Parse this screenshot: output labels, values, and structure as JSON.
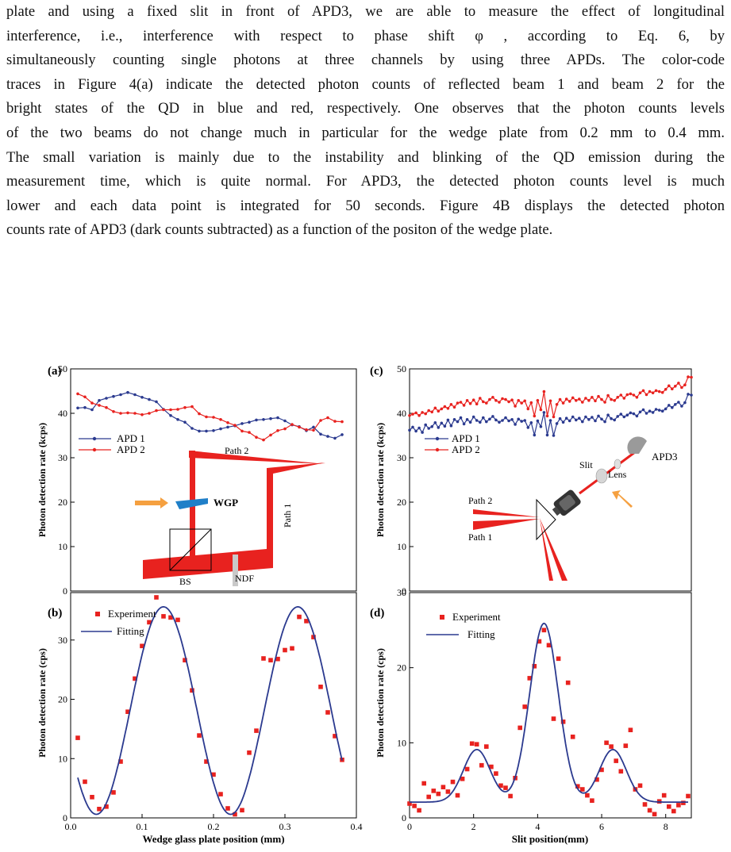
{
  "paragraph": {
    "lines": [
      "plate and using a fixed slit in front of APD3, we are able to measure the effect of longitudinal",
      "interference, i.e., interference with respect to phase shift φ , according to Eq. 6, by",
      "simultaneously counting single photons at three channels by using three APDs. The color-code",
      "traces in Figure 4(a) indicate the detected photon counts of reflected beam 1 and beam 2 for the",
      "bright states of the QD in blue and red, respectively. One observes that the photon counts levels",
      "of the two beams do not change much in particular for the wedge plate from 0.2 mm to 0.4 mm.",
      "The small variation is mainly due to the instability and blinking of the QD emission during the",
      "measurement time, which is quite normal. For APD3, the detected photon counts level is much",
      "lower and each data point is integrated for 50 seconds. Figure 4B displays the detected photon",
      "counts rate of APD3 (dark counts subtracted) as a function of the positon of the wedge plate."
    ]
  },
  "colors": {
    "blue": "#2b3a8f",
    "red": "#e8221f",
    "orange": "#f5a040",
    "teal": "#1f7fc8",
    "gray": "#c9c9c9"
  },
  "chart_data": [
    {
      "type": "line",
      "panel": "(a)",
      "ylabel": "Photon detection rate (kcps)",
      "ylim": [
        0,
        50
      ],
      "yticks": [
        "0",
        "10",
        "20",
        "30",
        "40",
        "50"
      ],
      "xlim": [
        0,
        0.4
      ],
      "series": [
        {
          "name": "APD 1",
          "color": "#2b3a8f",
          "x": [
            0.01,
            0.02,
            0.03,
            0.04,
            0.05,
            0.06,
            0.07,
            0.08,
            0.09,
            0.1,
            0.11,
            0.12,
            0.13,
            0.14,
            0.15,
            0.16,
            0.17,
            0.18,
            0.19,
            0.2,
            0.21,
            0.22,
            0.23,
            0.24,
            0.25,
            0.26,
            0.27,
            0.28,
            0.29,
            0.3,
            0.31,
            0.32,
            0.33,
            0.34,
            0.35,
            0.36,
            0.37,
            0.38
          ],
          "y": [
            41.2,
            41.3,
            40.8,
            42.9,
            43.4,
            43.8,
            44.2,
            44.7,
            44.2,
            43.6,
            43.1,
            42.6,
            40.9,
            39.5,
            38.6,
            38.0,
            36.6,
            36.0,
            36.0,
            36.1,
            36.5,
            36.9,
            37.2,
            37.7,
            38.0,
            38.5,
            38.6,
            38.8,
            39.0,
            38.3,
            37.4,
            37.0,
            36.1,
            36.9,
            35.3,
            34.8,
            34.4,
            35.2
          ]
        },
        {
          "name": "APD 2",
          "color": "#e8221f",
          "x": [
            0.01,
            0.02,
            0.03,
            0.04,
            0.05,
            0.06,
            0.07,
            0.08,
            0.09,
            0.1,
            0.11,
            0.12,
            0.13,
            0.14,
            0.15,
            0.16,
            0.17,
            0.18,
            0.19,
            0.2,
            0.21,
            0.22,
            0.23,
            0.24,
            0.25,
            0.26,
            0.27,
            0.28,
            0.29,
            0.3,
            0.31,
            0.32,
            0.33,
            0.34,
            0.35,
            0.36,
            0.37,
            0.38
          ],
          "y": [
            44.4,
            43.7,
            42.3,
            41.8,
            41.3,
            40.4,
            40.0,
            40.1,
            40.0,
            39.7,
            40.0,
            40.6,
            40.8,
            40.8,
            40.9,
            41.3,
            41.5,
            39.9,
            39.2,
            39.1,
            38.6,
            37.9,
            37.3,
            36.0,
            35.7,
            34.6,
            34.0,
            35.1,
            36.1,
            36.5,
            37.5,
            36.9,
            36.3,
            36.2,
            38.4,
            39.0,
            38.2,
            38.1
          ]
        }
      ],
      "legend": "center-left",
      "inset_labels": [
        "Path 2",
        "Path 1",
        "WGP",
        "BS",
        "NDF"
      ]
    },
    {
      "type": "scatter",
      "panel": "(b)",
      "xlabel": "Wedge glass plate position (mm)",
      "ylabel": "Photon detection rate (cps)",
      "xlim": [
        0,
        0.4
      ],
      "ylim": [
        0,
        38
      ],
      "xticks": [
        "0.0",
        "0.1",
        "0.2",
        "0.3",
        "0.4"
      ],
      "yticks": [
        "0",
        "10",
        "20",
        "30"
      ],
      "series": [
        {
          "name": "Experiment",
          "color": "#e8221f",
          "x": [
            0.01,
            0.02,
            0.03,
            0.04,
            0.05,
            0.06,
            0.07,
            0.08,
            0.09,
            0.1,
            0.11,
            0.12,
            0.13,
            0.14,
            0.15,
            0.16,
            0.17,
            0.18,
            0.19,
            0.2,
            0.21,
            0.22,
            0.23,
            0.24,
            0.25,
            0.26,
            0.27,
            0.28,
            0.29,
            0.3,
            0.31,
            0.32,
            0.33,
            0.34,
            0.35,
            0.36,
            0.37,
            0.38
          ],
          "y": [
            13.5,
            6.1,
            3.5,
            1.5,
            1.9,
            4.3,
            9.5,
            17.9,
            23.5,
            29.0,
            33.0,
            37.2,
            34.0,
            33.8,
            33.4,
            26.6,
            21.5,
            13.9,
            9.5,
            7.3,
            4.0,
            1.6,
            0.6,
            1.3,
            11.0,
            14.7,
            26.9,
            26.6,
            26.8,
            28.3,
            28.6,
            33.9,
            33.2,
            30.5,
            22.1,
            17.8,
            13.8,
            9.8
          ]
        },
        {
          "name": "Fitting",
          "color": "#2b3a8f",
          "fit": {
            "offset": 18.1,
            "amplitude": 17.5,
            "period": 0.188,
            "phase_x": 0.13
          }
        }
      ],
      "legend": "top-left"
    },
    {
      "type": "line",
      "panel": "(c)",
      "ylabel": "Photon detection rate (kcps)",
      "ylim": [
        0,
        50
      ],
      "yticks": [
        "0",
        "10",
        "20",
        "30",
        "40",
        "50"
      ],
      "xlim": [
        0,
        8.8
      ],
      "series": [
        {
          "name": "APD 1",
          "color": "#2b3a8f",
          "x": [
            0,
            0.1,
            0.2,
            0.3,
            0.4,
            0.5,
            0.6,
            0.7,
            0.8,
            0.9,
            1.0,
            1.1,
            1.2,
            1.3,
            1.4,
            1.5,
            1.6,
            1.7,
            1.8,
            1.9,
            2.0,
            2.1,
            2.2,
            2.3,
            2.4,
            2.5,
            2.6,
            2.7,
            2.8,
            2.9,
            3.0,
            3.1,
            3.2,
            3.3,
            3.4,
            3.5,
            3.6,
            3.7,
            3.8,
            3.9,
            4.0,
            4.1,
            4.2,
            4.3,
            4.4,
            4.5,
            4.6,
            4.7,
            4.8,
            4.9,
            5.0,
            5.1,
            5.2,
            5.3,
            5.4,
            5.5,
            5.6,
            5.7,
            5.8,
            5.9,
            6.0,
            6.1,
            6.2,
            6.3,
            6.4,
            6.5,
            6.6,
            6.7,
            6.8,
            6.9,
            7.0,
            7.1,
            7.2,
            7.3,
            7.4,
            7.5,
            7.6,
            7.7,
            7.8,
            7.9,
            8.0,
            8.1,
            8.2,
            8.3,
            8.4,
            8.5,
            8.6,
            8.7,
            8.8
          ],
          "y": [
            36.2,
            36.9,
            36.0,
            36.7,
            35.7,
            37.4,
            36.6,
            37.0,
            37.9,
            36.8,
            37.8,
            37.1,
            38.5,
            37.2,
            38.6,
            38.1,
            39.0,
            37.6,
            38.6,
            38.0,
            39.2,
            38.4,
            38.0,
            39.0,
            38.1,
            38.7,
            39.3,
            38.5,
            38.0,
            38.4,
            39.0,
            38.3,
            38.6,
            37.5,
            38.7,
            38.2,
            38.4,
            36.8,
            37.9,
            35.1,
            38.3,
            37.0,
            40.2,
            35.1,
            38.4,
            35.0,
            37.7,
            38.8,
            38.0,
            38.9,
            38.3,
            39.2,
            38.5,
            38.9,
            38.1,
            39.2,
            38.6,
            39.1,
            38.3,
            39.4,
            38.7,
            38.1,
            39.6,
            38.8,
            38.5,
            39.3,
            39.8,
            39.2,
            39.6,
            40.1,
            39.9,
            39.4,
            40.3,
            40.8,
            40.0,
            40.5,
            40.2,
            40.9,
            40.7,
            40.5,
            41.0,
            41.8,
            41.3,
            42.0,
            42.5,
            41.6,
            42.4,
            44.3,
            44.1
          ]
        },
        {
          "name": "APD 2",
          "color": "#e8221f",
          "x": [
            0,
            0.1,
            0.2,
            0.3,
            0.4,
            0.5,
            0.6,
            0.7,
            0.8,
            0.9,
            1.0,
            1.1,
            1.2,
            1.3,
            1.4,
            1.5,
            1.6,
            1.7,
            1.8,
            1.9,
            2.0,
            2.1,
            2.2,
            2.3,
            2.4,
            2.5,
            2.6,
            2.7,
            2.8,
            2.9,
            3.0,
            3.1,
            3.2,
            3.3,
            3.4,
            3.5,
            3.6,
            3.7,
            3.8,
            3.9,
            4.0,
            4.1,
            4.2,
            4.3,
            4.4,
            4.5,
            4.6,
            4.7,
            4.8,
            4.9,
            5.0,
            5.1,
            5.2,
            5.3,
            5.4,
            5.5,
            5.6,
            5.7,
            5.8,
            5.9,
            6.0,
            6.1,
            6.2,
            6.3,
            6.4,
            6.5,
            6.6,
            6.7,
            6.8,
            6.9,
            7.0,
            7.1,
            7.2,
            7.3,
            7.4,
            7.5,
            7.6,
            7.7,
            7.8,
            7.9,
            8.0,
            8.1,
            8.2,
            8.3,
            8.4,
            8.5,
            8.6,
            8.7,
            8.8
          ],
          "y": [
            39.5,
            39.8,
            40.1,
            39.5,
            40.2,
            39.9,
            40.6,
            40.3,
            41.2,
            40.5,
            41.0,
            41.5,
            41.1,
            42.0,
            41.4,
            42.3,
            42.5,
            41.8,
            42.9,
            42.2,
            43.0,
            42.1,
            43.4,
            42.6,
            42.3,
            43.1,
            43.6,
            42.9,
            42.5,
            43.3,
            43.1,
            42.6,
            43.0,
            41.6,
            42.9,
            42.3,
            42.8,
            41.0,
            42.4,
            39.4,
            42.9,
            40.8,
            44.9,
            39.4,
            42.8,
            39.2,
            42.0,
            43.1,
            42.3,
            43.2,
            42.7,
            43.5,
            42.9,
            43.2,
            42.5,
            43.4,
            42.9,
            43.6,
            42.8,
            43.8,
            43.1,
            42.5,
            44.0,
            43.1,
            42.9,
            43.6,
            44.1,
            43.4,
            44.2,
            44.4,
            44.1,
            43.6,
            44.6,
            45.1,
            44.2,
            44.9,
            44.6,
            45.1,
            44.9,
            44.7,
            45.4,
            46.2,
            45.5,
            46.1,
            46.8,
            45.8,
            46.4,
            48.2,
            48.1
          ]
        }
      ],
      "legend": "center-left",
      "inset_labels": [
        "APD3",
        "Slit",
        "Lens",
        "Path 2",
        "Path 1"
      ]
    },
    {
      "type": "scatter",
      "panel": "(d)",
      "xlabel": "Slit position(mm)",
      "ylabel": "Photon detection rate (cps)",
      "xlim": [
        0,
        8.8
      ],
      "ylim": [
        0,
        30
      ],
      "xticks": [
        "0",
        "2",
        "4",
        "6",
        "8"
      ],
      "yticks": [
        "0",
        "10",
        "20",
        "30"
      ],
      "series": [
        {
          "name": "Experiment",
          "color": "#e8221f",
          "x": [
            0.0,
            0.15,
            0.3,
            0.45,
            0.6,
            0.75,
            0.9,
            1.05,
            1.2,
            1.35,
            1.5,
            1.65,
            1.8,
            1.95,
            2.1,
            2.25,
            2.4,
            2.55,
            2.7,
            2.85,
            3.0,
            3.15,
            3.3,
            3.45,
            3.6,
            3.75,
            3.9,
            4.05,
            4.2,
            4.35,
            4.5,
            4.65,
            4.8,
            4.95,
            5.1,
            5.25,
            5.4,
            5.55,
            5.7,
            5.85,
            6.0,
            6.15,
            6.3,
            6.45,
            6.6,
            6.75,
            6.9,
            7.05,
            7.2,
            7.35,
            7.5,
            7.65,
            7.8,
            7.95,
            8.1,
            8.25,
            8.4,
            8.55,
            8.7
          ],
          "y": [
            1.9,
            1.6,
            1.0,
            4.6,
            2.8,
            3.6,
            3.2,
            4.1,
            3.5,
            4.8,
            3.0,
            5.2,
            6.5,
            9.9,
            9.8,
            7.0,
            9.5,
            6.8,
            5.9,
            4.3,
            4.0,
            2.9,
            5.3,
            12.0,
            14.8,
            18.6,
            20.2,
            23.5,
            25.0,
            23.0,
            13.2,
            21.2,
            12.8,
            18.0,
            10.8,
            4.2,
            3.8,
            3.0,
            2.3,
            5.1,
            6.4,
            10.0,
            9.5,
            7.6,
            6.2,
            9.6,
            11.7,
            3.8,
            4.3,
            1.8,
            1.0,
            0.5,
            2.2,
            3.0,
            1.5,
            0.9,
            1.7,
            2.0,
            2.9
          ]
        },
        {
          "name": "Fitting",
          "color": "#2b3a8f",
          "fit": {
            "baseline": 2.1,
            "peaks": [
              {
                "x": 4.2,
                "height": 23.8,
                "width": 0.45
              },
              {
                "x": 2.1,
                "height": 7.0,
                "width": 0.42
              },
              {
                "x": 6.35,
                "height": 7.0,
                "width": 0.42
              }
            ]
          }
        }
      ],
      "legend": "top-left"
    }
  ]
}
